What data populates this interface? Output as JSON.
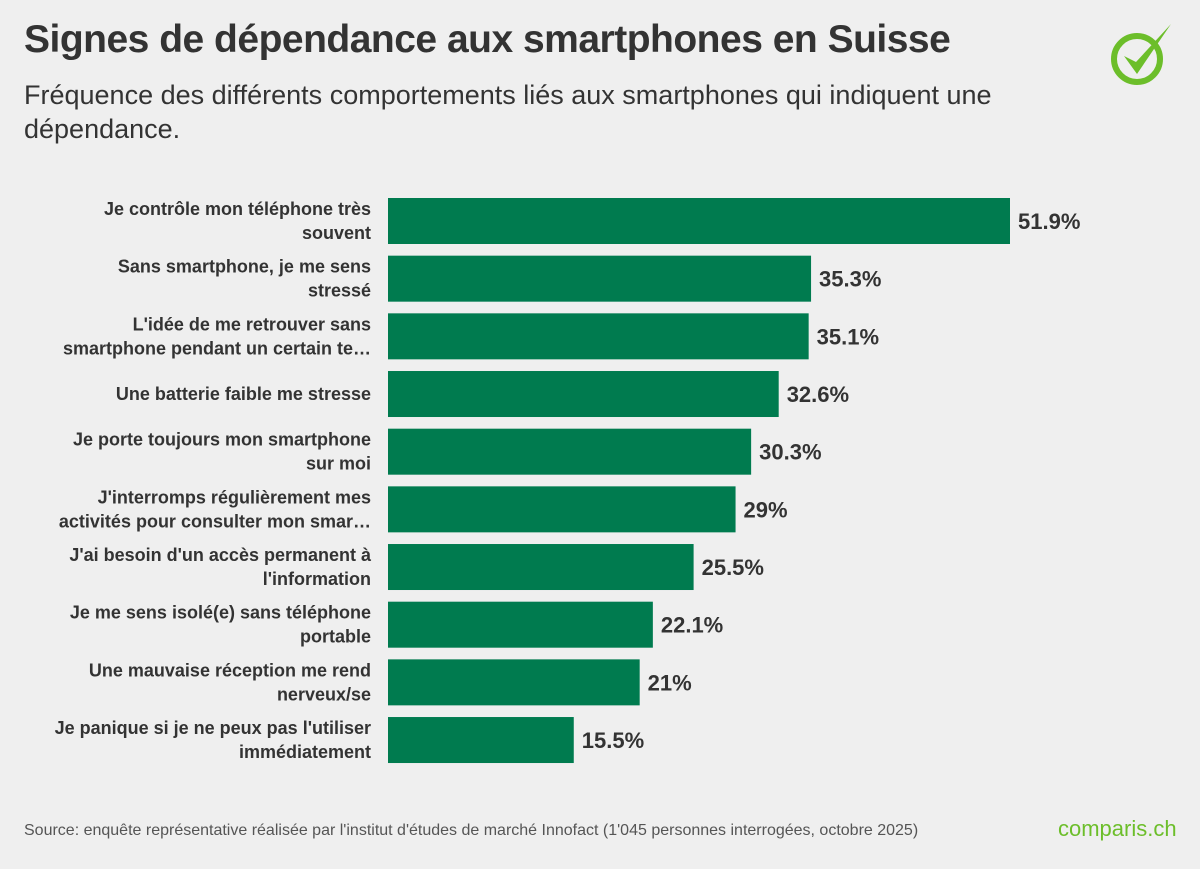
{
  "header": {
    "title": "Signes de dépendance aux smartphones en Suisse",
    "subtitle": "Fréquence des différents comportements liés aux smartphones qui indiquent une dépendance."
  },
  "colors": {
    "bar": "#007b4f",
    "brand": "#6cbe2a",
    "background": "#efefef"
  },
  "chart_data": {
    "type": "bar",
    "orientation": "horizontal",
    "categories": [
      [
        "Je contrôle mon téléphone très",
        "souvent"
      ],
      [
        "Sans smartphone, je me sens",
        "stressé"
      ],
      [
        "L'idée de me retrouver sans",
        "smartphone pendant un certain te…"
      ],
      [
        "Une batterie faible me stresse"
      ],
      [
        "Je porte toujours mon smartphone",
        "sur moi"
      ],
      [
        "J'interromps régulièrement mes",
        "activités pour consulter mon smar…"
      ],
      [
        "J'ai besoin d'un accès permanent à",
        "l'information"
      ],
      [
        "Je me sens isolé(e) sans téléphone",
        "portable"
      ],
      [
        "Une mauvaise réception me rend",
        "nerveux/se"
      ],
      [
        "Je panique si je ne peux pas l'utiliser",
        "immédiatement"
      ]
    ],
    "values": [
      51.9,
      35.3,
      35.1,
      32.6,
      30.3,
      29,
      25.5,
      22.1,
      21,
      15.5
    ],
    "value_labels": [
      "51.9%",
      "35.3%",
      "35.1%",
      "32.6%",
      "30.3%",
      "29%",
      "25.5%",
      "22.1%",
      "21%",
      "15.5%"
    ],
    "xlim": [
      0,
      51.9
    ],
    "grid": false
  },
  "footer": {
    "source": "Source: enquête représentative réalisée par l'institut d'études de marché Innofact (1'045 personnes interrogées, octobre 2025)",
    "brand": "comparis.ch"
  }
}
